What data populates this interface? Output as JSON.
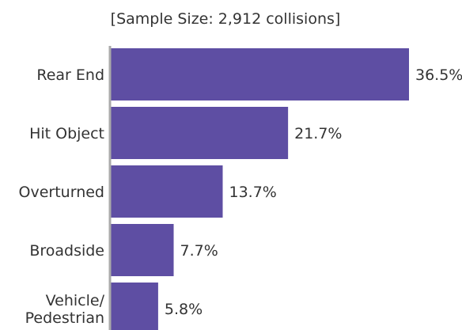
{
  "chart_data": {
    "type": "bar",
    "orientation": "horizontal",
    "subtitle": "[Sample Size: 2,912 collisions]",
    "categories": [
      [
        "Rear End"
      ],
      [
        "Hit Object"
      ],
      [
        "Overturned"
      ],
      [
        "Broadside"
      ],
      [
        "Vehicle/",
        "Pedestrian"
      ]
    ],
    "values": [
      36.5,
      21.7,
      13.7,
      7.7,
      5.8
    ],
    "value_labels": [
      "36.5%",
      "21.7%",
      "13.7%",
      "7.7%",
      "5.8%"
    ],
    "unit": "%",
    "xlim": [
      0,
      36.5
    ],
    "bar_color": "#5e4ea3",
    "axis_color": "#aaaaaa",
    "text_color": "#333333",
    "grid": false,
    "legend": "none"
  }
}
